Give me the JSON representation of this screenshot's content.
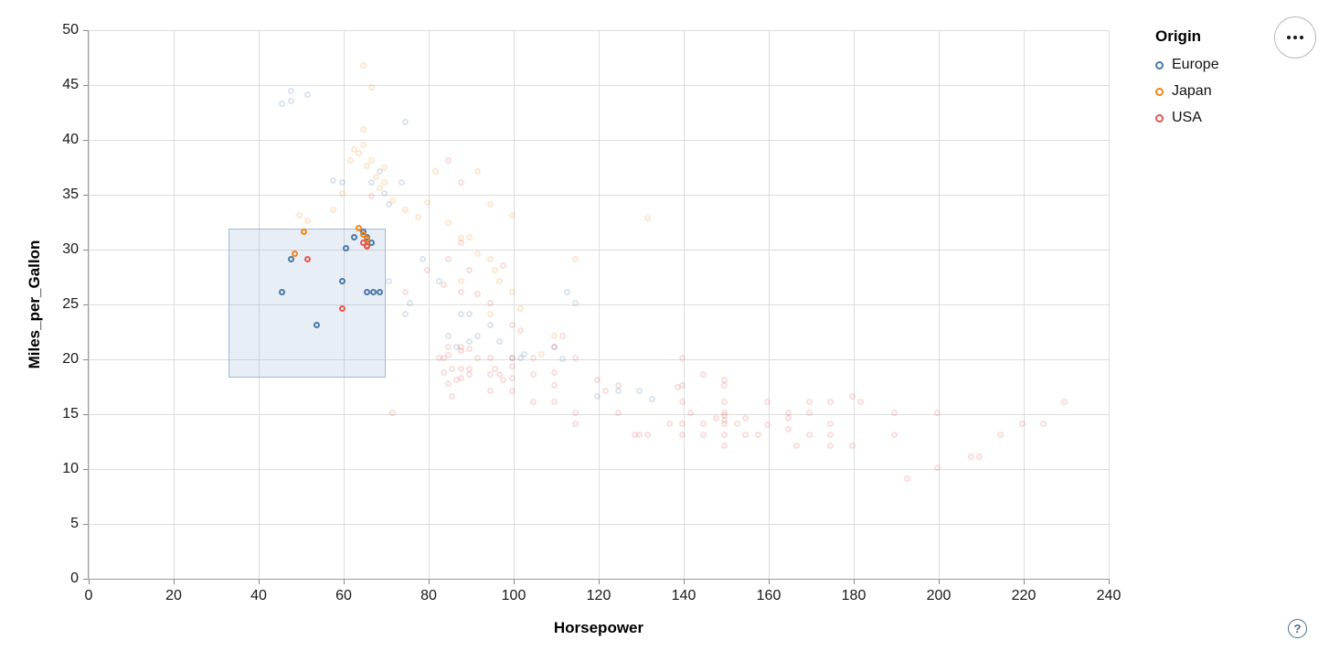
{
  "controls": {
    "help_label": "?"
  },
  "chart_data": {
    "type": "scatter",
    "xlabel": "Horsepower",
    "ylabel": "Miles_per_Gallon",
    "xlim": [
      0,
      240
    ],
    "ylim": [
      0,
      50
    ],
    "x_ticks": [
      0,
      20,
      40,
      60,
      80,
      100,
      120,
      140,
      160,
      180,
      200,
      220,
      240
    ],
    "y_ticks": [
      0,
      5,
      10,
      15,
      20,
      25,
      30,
      35,
      40,
      45,
      50
    ],
    "grid": true,
    "unselected_opacity": 0.2,
    "brush": {
      "x": [
        33,
        70
      ],
      "y": [
        18.3,
        31.9
      ]
    },
    "legend": {
      "title": "Origin",
      "position": "top-right",
      "entries": [
        {
          "label": "Europe",
          "color": "#4c78a8"
        },
        {
          "label": "Japan",
          "color": "#f58518"
        },
        {
          "label": "USA",
          "color": "#e45756"
        }
      ]
    },
    "series": [
      {
        "name": "Europe",
        "color": "#4c78a8",
        "selected": [
          [
            46,
            26
          ],
          [
            48,
            29
          ],
          [
            54,
            23
          ],
          [
            60,
            27
          ],
          [
            61,
            30
          ],
          [
            63,
            31
          ],
          [
            65,
            31.5
          ],
          [
            66,
            31
          ],
          [
            67,
            30.5
          ],
          [
            66,
            26
          ],
          [
            67.5,
            26
          ],
          [
            69,
            26
          ]
        ],
        "unselected": [
          [
            46,
            43.1
          ],
          [
            48,
            43.4
          ],
          [
            48,
            44.3
          ],
          [
            52,
            44
          ],
          [
            58,
            36.1
          ],
          [
            60,
            36
          ],
          [
            67,
            36
          ],
          [
            69,
            37
          ],
          [
            70,
            35
          ],
          [
            71,
            34
          ],
          [
            74,
            36
          ],
          [
            75,
            41.5
          ],
          [
            71,
            27
          ],
          [
            75,
            24
          ],
          [
            76,
            25
          ],
          [
            79,
            29
          ],
          [
            83,
            27
          ],
          [
            85,
            22
          ],
          [
            87,
            21
          ],
          [
            88,
            24
          ],
          [
            90,
            24
          ],
          [
            90,
            21.5
          ],
          [
            92,
            22
          ],
          [
            95,
            23
          ],
          [
            97,
            21.5
          ],
          [
            100,
            20
          ],
          [
            102,
            20
          ],
          [
            103,
            20.3
          ],
          [
            110,
            21
          ],
          [
            112,
            19.9
          ],
          [
            113,
            26
          ],
          [
            115,
            25
          ],
          [
            120,
            16.5
          ],
          [
            125,
            17
          ],
          [
            130,
            17
          ],
          [
            133,
            16.2
          ]
        ]
      },
      {
        "name": "Japan",
        "color": "#f58518",
        "selected": [
          [
            49,
            29.5
          ],
          [
            51,
            31.5
          ],
          [
            64,
            31.8
          ],
          [
            65,
            31.2
          ],
          [
            66,
            30.8
          ],
          [
            66,
            30.2
          ]
        ],
        "unselected": [
          [
            65,
            46.6
          ],
          [
            67,
            44.6
          ],
          [
            65,
            40.8
          ],
          [
            62,
            38
          ],
          [
            63,
            39
          ],
          [
            64,
            38.6
          ],
          [
            65,
            39.4
          ],
          [
            66,
            37.5
          ],
          [
            67,
            38
          ],
          [
            68,
            36.5
          ],
          [
            69,
            35.5
          ],
          [
            70,
            36
          ],
          [
            70,
            37.3
          ],
          [
            72,
            34.3
          ],
          [
            50,
            33
          ],
          [
            52,
            32.5
          ],
          [
            58,
            33.5
          ],
          [
            60,
            35
          ],
          [
            75,
            33.5
          ],
          [
            78,
            32.8
          ],
          [
            80,
            34.1
          ],
          [
            82,
            37
          ],
          [
            85,
            32.3
          ],
          [
            88,
            30.9
          ],
          [
            88,
            27
          ],
          [
            90,
            31
          ],
          [
            92,
            29.5
          ],
          [
            92,
            37
          ],
          [
            95,
            24
          ],
          [
            95,
            29
          ],
          [
            95,
            34
          ],
          [
            96,
            28
          ],
          [
            97,
            27
          ],
          [
            100,
            33
          ],
          [
            100,
            26
          ],
          [
            102,
            24.5
          ],
          [
            107,
            20.3
          ],
          [
            110,
            22
          ],
          [
            115,
            29
          ],
          [
            132,
            32.7
          ]
        ]
      },
      {
        "name": "USA",
        "color": "#e45756",
        "selected": [
          [
            52,
            29
          ],
          [
            60,
            24.5
          ],
          [
            65,
            30.5
          ],
          [
            66,
            30.1
          ]
        ],
        "unselected": [
          [
            72,
            15
          ],
          [
            85,
            38
          ],
          [
            88,
            36
          ],
          [
            67,
            34.7
          ],
          [
            75,
            26
          ],
          [
            80,
            28
          ],
          [
            84,
            26.6
          ],
          [
            85,
            29
          ],
          [
            88,
            26
          ],
          [
            88,
            30.5
          ],
          [
            90,
            28
          ],
          [
            92,
            25.8
          ],
          [
            95,
            25
          ],
          [
            98,
            28.4
          ],
          [
            100,
            23
          ],
          [
            83,
            20
          ],
          [
            84,
            18.6
          ],
          [
            84,
            20
          ],
          [
            85,
            17.6
          ],
          [
            85,
            20.2
          ],
          [
            85,
            21
          ],
          [
            86,
            16.5
          ],
          [
            86,
            19
          ],
          [
            87,
            18
          ],
          [
            88,
            18.1
          ],
          [
            88,
            19
          ],
          [
            88,
            20.6
          ],
          [
            88,
            21
          ],
          [
            90,
            18.5
          ],
          [
            90,
            19
          ],
          [
            90,
            20.8
          ],
          [
            92,
            20
          ],
          [
            95,
            17
          ],
          [
            95,
            18.5
          ],
          [
            95,
            20
          ],
          [
            96,
            19
          ],
          [
            97,
            18.5
          ],
          [
            98,
            18
          ],
          [
            100,
            17
          ],
          [
            100,
            18.1
          ],
          [
            100,
            19.2
          ],
          [
            100,
            20
          ],
          [
            102,
            22.5
          ],
          [
            105,
            16
          ],
          [
            105,
            18.5
          ],
          [
            105,
            20
          ],
          [
            110,
            16
          ],
          [
            110,
            17.5
          ],
          [
            110,
            18.6
          ],
          [
            110,
            21
          ],
          [
            112,
            22
          ],
          [
            115,
            15
          ],
          [
            115,
            20
          ],
          [
            115,
            14
          ],
          [
            120,
            18
          ],
          [
            122,
            17
          ],
          [
            125,
            15
          ],
          [
            125,
            17.5
          ],
          [
            129,
            13
          ],
          [
            130,
            13
          ],
          [
            132,
            13
          ],
          [
            137,
            14
          ],
          [
            139,
            17.3
          ],
          [
            140,
            13
          ],
          [
            140,
            14
          ],
          [
            140,
            16
          ],
          [
            140,
            17.5
          ],
          [
            140,
            20
          ],
          [
            142,
            15
          ],
          [
            145,
            13
          ],
          [
            145,
            14
          ],
          [
            145,
            18.5
          ],
          [
            148,
            14.5
          ],
          [
            150,
            12
          ],
          [
            150,
            13
          ],
          [
            150,
            14
          ],
          [
            150,
            14.3
          ],
          [
            150,
            14.7
          ],
          [
            150,
            15
          ],
          [
            150,
            16
          ],
          [
            150,
            17.5
          ],
          [
            150,
            18
          ],
          [
            153,
            14
          ],
          [
            155,
            13
          ],
          [
            155,
            14.5
          ],
          [
            158,
            13
          ],
          [
            160,
            13.9
          ],
          [
            160,
            16
          ],
          [
            165,
            13.5
          ],
          [
            165,
            14.5
          ],
          [
            165,
            15
          ],
          [
            167,
            12
          ],
          [
            170,
            13
          ],
          [
            170,
            15
          ],
          [
            170,
            16
          ],
          [
            175,
            12
          ],
          [
            175,
            13
          ],
          [
            175,
            14
          ],
          [
            175,
            16
          ],
          [
            180,
            12
          ],
          [
            180,
            16.5
          ],
          [
            182,
            16
          ],
          [
            190,
            13
          ],
          [
            190,
            15
          ],
          [
            193,
            9
          ],
          [
            200,
            10
          ],
          [
            200,
            15
          ],
          [
            208,
            11
          ],
          [
            210,
            11
          ],
          [
            215,
            13
          ],
          [
            220,
            14
          ],
          [
            225,
            14
          ],
          [
            230,
            16
          ]
        ]
      }
    ]
  }
}
